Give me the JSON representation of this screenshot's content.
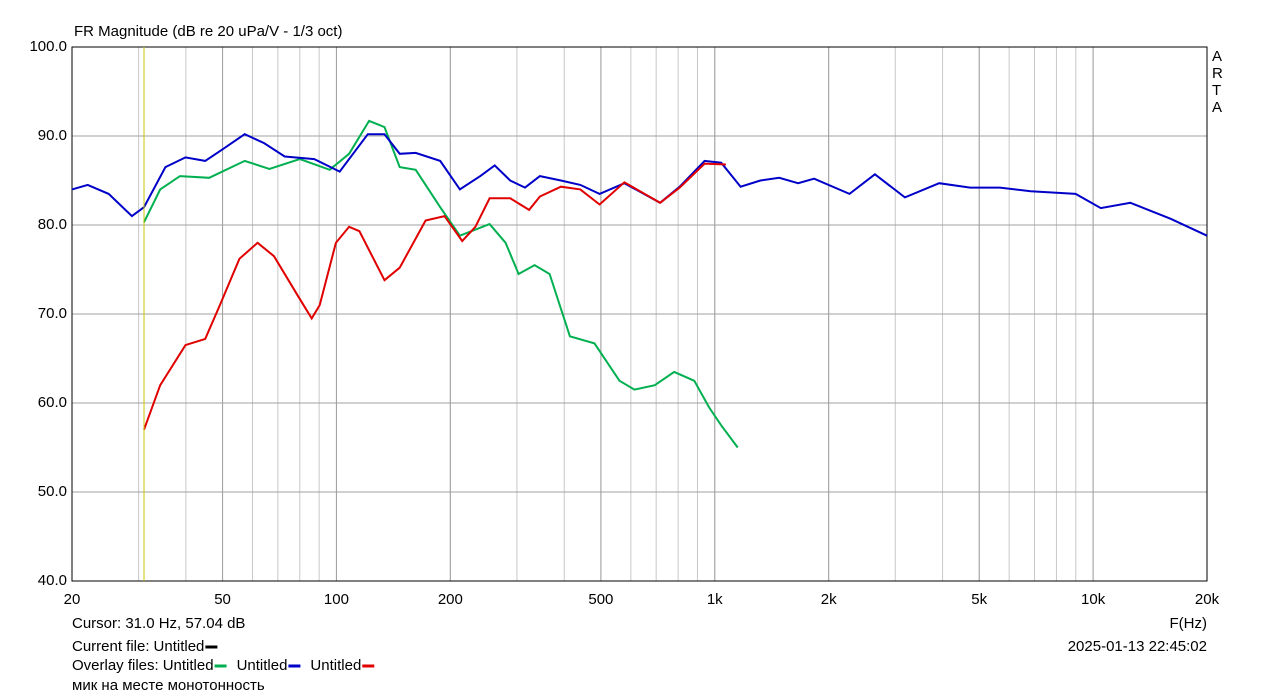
{
  "chart_data": {
    "type": "line",
    "title": "FR Magnitude (dB re 20 uPa/V - 1/3 oct)",
    "brand": "ARTA",
    "x_label": "F(Hz)",
    "log_x": true,
    "grid": true,
    "xlim": [
      20,
      20000
    ],
    "ylim": [
      40,
      100
    ],
    "xticks": [
      20,
      50,
      100,
      200,
      500,
      {
        "value": 1000,
        "label": "1k"
      },
      {
        "value": 2000,
        "label": "2k"
      },
      {
        "value": 5000,
        "label": "5k"
      },
      {
        "value": 10000,
        "label": "10k"
      },
      {
        "value": 20000,
        "label": "20k"
      }
    ],
    "yticks": [
      {
        "value": 40,
        "label": "40.0"
      },
      {
        "value": 50,
        "label": "50.0"
      },
      {
        "value": 60,
        "label": "60.0"
      },
      {
        "value": 70,
        "label": "70.0"
      },
      {
        "value": 80,
        "label": "80.0"
      },
      {
        "value": 90,
        "label": "90.0"
      },
      {
        "value": 100,
        "label": "100.0"
      }
    ],
    "cursor": {
      "x": 31,
      "color": "#c8c800",
      "text": "Cursor: 31.0 Hz, 57.04 dB"
    },
    "current_file": {
      "label": "Current file:",
      "name": "Untitled",
      "color": "#000000"
    },
    "overlay_label": "Overlay files:",
    "series": [
      {
        "name": "Untitled",
        "color": "#00b050",
        "x": [
          31,
          34.2,
          38.6,
          46.1,
          57.2,
          66.5,
          80,
          96,
          108,
          122,
          134,
          147,
          162,
          188,
          212,
          254,
          280,
          303,
          334,
          366,
          414,
          481,
          560,
          613,
          694,
          781,
          883,
          966,
          1040,
          1150
        ],
        "values": [
          80.3,
          84,
          85.5,
          85.3,
          87.2,
          86.3,
          87.4,
          86.2,
          88,
          91.7,
          91,
          86.5,
          86.2,
          82,
          78.8,
          80.1,
          78,
          74.5,
          75.5,
          74.5,
          67.5,
          66.7,
          62.5,
          61.5,
          62,
          63.5,
          62.5,
          59.5,
          57.5,
          55
        ]
      },
      {
        "name": "Untitled",
        "color": "#0000c8",
        "x": [
          20,
          22,
          25,
          28.8,
          31,
          35.3,
          39.9,
          45,
          50,
          57.2,
          64.4,
          73,
          87.4,
          102,
          121,
          134,
          147,
          162,
          188,
          212,
          240,
          262,
          288,
          315,
          345,
          392,
          441,
          496,
          577,
          717,
          808,
          940,
          1040,
          1170,
          1320,
          1480,
          1660,
          1830,
          2270,
          2650,
          3180,
          3920,
          4730,
          5670,
          6840,
          8990,
          10480,
          12550,
          16040,
          20000
        ],
        "values": [
          84,
          84.5,
          83.5,
          81,
          82,
          86.5,
          87.6,
          87.2,
          88.5,
          90.2,
          89.2,
          87.7,
          87.4,
          86,
          90.2,
          90.2,
          88,
          88.1,
          87.2,
          84,
          85.5,
          86.7,
          85,
          84.2,
          85.5,
          85,
          84.5,
          83.5,
          84.7,
          82.5,
          84.3,
          87.2,
          87,
          84.3,
          85,
          85.3,
          84.7,
          85.2,
          83.5,
          85.7,
          83.1,
          84.7,
          84.2,
          84.2,
          83.8,
          83.5,
          81.9,
          82.5,
          80.7,
          78.8
        ]
      },
      {
        "name": "Untitled",
        "color": "#e00000",
        "x": [
          31,
          34.2,
          39.9,
          45,
          49.2,
          55.4,
          61.9,
          68.4,
          79.2,
          86,
          90.3,
          99.7,
          108,
          115,
          134,
          147,
          172,
          193,
          215,
          233,
          254,
          288,
          323,
          345,
          392,
          441,
          496,
          577,
          717,
          808,
          940,
          1070
        ],
        "values": [
          57,
          62,
          66.5,
          67.2,
          71,
          76.2,
          78,
          76.5,
          72,
          69.5,
          71,
          78,
          79.8,
          79.3,
          73.8,
          75.2,
          80.5,
          81,
          78.2,
          79.8,
          83,
          83,
          81.7,
          83.2,
          84.3,
          84,
          82.3,
          84.8,
          82.5,
          84.2,
          86.9,
          86.8
        ]
      }
    ],
    "timestamp": "2025-01-13  22:45:02",
    "note": "мик на месте монотонность"
  }
}
